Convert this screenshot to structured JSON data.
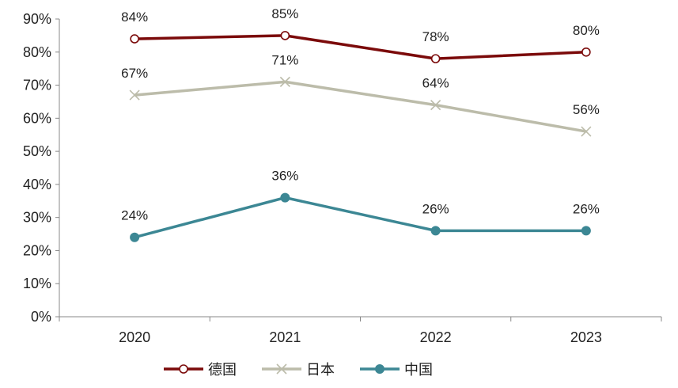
{
  "chart_data": {
    "type": "line",
    "title": "",
    "xlabel": "",
    "ylabel": "",
    "categories": [
      "2020",
      "2021",
      "2022",
      "2023"
    ],
    "ylim": [
      0,
      90
    ],
    "yticks": [
      "0%",
      "10%",
      "20%",
      "30%",
      "40%",
      "50%",
      "60%",
      "70%",
      "80%",
      "90%"
    ],
    "grid": false,
    "legend_position": "bottom",
    "series": [
      {
        "name": "德国",
        "values": [
          84,
          85,
          78,
          80
        ],
        "labels": [
          "84%",
          "85%",
          "78%",
          "80%"
        ],
        "color": "#7b0a0a",
        "marker": "hollow-circle"
      },
      {
        "name": "日本",
        "values": [
          67,
          71,
          64,
          56
        ],
        "labels": [
          "67%",
          "71%",
          "64%",
          "56%"
        ],
        "color": "#bcbcaa",
        "marker": "x"
      },
      {
        "name": "中国",
        "values": [
          24,
          36,
          26,
          26
        ],
        "labels": [
          "24%",
          "36%",
          "26%",
          "26%"
        ],
        "color": "#3c8794",
        "marker": "filled-circle"
      }
    ]
  }
}
